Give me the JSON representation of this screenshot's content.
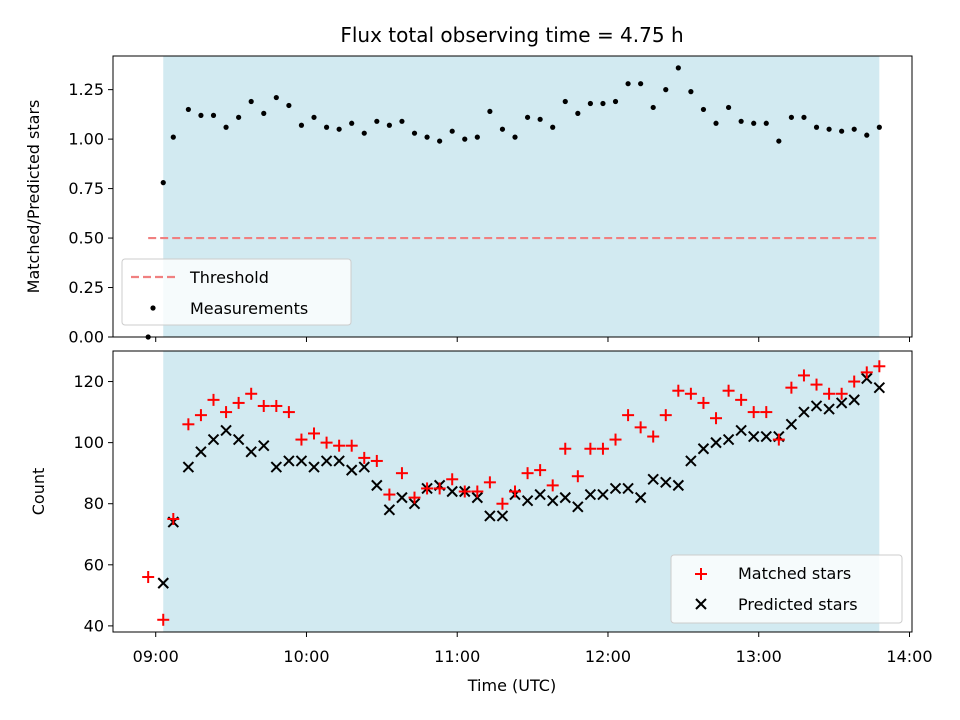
{
  "chart_data": [
    {
      "type": "scatter",
      "title": "Flux total observing time = 4.75 h",
      "ylabel": "Matched/Predicted stars",
      "ylim": [
        0.0,
        1.42
      ],
      "yticks": [
        0.0,
        0.25,
        0.5,
        0.75,
        1.0,
        1.25
      ],
      "ytick_labels": [
        "0.00",
        "0.25",
        "0.50",
        "0.75",
        "1.00",
        "1.25"
      ],
      "shaded_region": {
        "x": [
          "09:03",
          "13:48"
        ],
        "color": "#add8e6"
      },
      "threshold": {
        "name": "Threshold",
        "y": 0.5,
        "x": [
          "08:57",
          "13:48"
        ],
        "color": "#f08080",
        "style": "dashed"
      },
      "series": [
        {
          "name": "Measurements",
          "color": "#000000",
          "marker": "dot",
          "x": [
            "08:57",
            "09:03",
            "09:07",
            "09:13",
            "09:18",
            "09:23",
            "09:28",
            "09:33",
            "09:38",
            "09:43",
            "09:48",
            "09:53",
            "09:58",
            "10:03",
            "10:08",
            "10:13",
            "10:18",
            "10:23",
            "10:28",
            "10:33",
            "10:38",
            "10:43",
            "10:48",
            "10:53",
            "10:58",
            "11:03",
            "11:08",
            "11:13",
            "11:18",
            "11:23",
            "11:28",
            "11:33",
            "11:38",
            "11:43",
            "11:48",
            "11:53",
            "11:58",
            "12:03",
            "12:08",
            "12:13",
            "12:18",
            "12:23",
            "12:28",
            "12:33",
            "12:38",
            "12:43",
            "12:48",
            "12:53",
            "12:58",
            "13:03",
            "13:08",
            "13:13",
            "13:18",
            "13:23",
            "13:28",
            "13:33",
            "13:38",
            "13:43",
            "13:48"
          ],
          "y": [
            0.0,
            0.78,
            1.01,
            1.15,
            1.12,
            1.12,
            1.06,
            1.11,
            1.19,
            1.13,
            1.21,
            1.17,
            1.07,
            1.11,
            1.06,
            1.05,
            1.08,
            1.03,
            1.09,
            1.07,
            1.09,
            1.03,
            1.01,
            0.99,
            1.04,
            1.0,
            1.01,
            1.14,
            1.05,
            1.01,
            1.11,
            1.1,
            1.06,
            1.19,
            1.13,
            1.18,
            1.18,
            1.19,
            1.28,
            1.28,
            1.16,
            1.25,
            1.36,
            1.24,
            1.15,
            1.08,
            1.16,
            1.09,
            1.08,
            1.08,
            0.99,
            1.11,
            1.11,
            1.06,
            1.05,
            1.04,
            1.05,
            1.02,
            1.06
          ]
        }
      ],
      "legend": {
        "position": "lower-left",
        "entries": [
          "Threshold",
          "Measurements"
        ]
      }
    },
    {
      "type": "scatter",
      "xlabel": "Time (UTC)",
      "ylabel": "Count",
      "ylim": [
        38,
        130
      ],
      "yticks": [
        40,
        60,
        80,
        100,
        120
      ],
      "ytick_labels": [
        "40",
        "60",
        "80",
        "100",
        "120"
      ],
      "xlim": [
        "08:43",
        "14:01"
      ],
      "xticks": [
        "09:00",
        "10:00",
        "11:00",
        "12:00",
        "13:00",
        "14:00"
      ],
      "xtick_labels": [
        "09:00",
        "10:00",
        "11:00",
        "12:00",
        "13:00",
        "14:00"
      ],
      "shaded_region": {
        "x": [
          "09:03",
          "13:48"
        ],
        "color": "#add8e6"
      },
      "series": [
        {
          "name": "Matched stars",
          "color": "#ff0000",
          "marker": "plus",
          "x": [
            "08:57",
            "09:03",
            "09:07",
            "09:13",
            "09:18",
            "09:23",
            "09:28",
            "09:33",
            "09:38",
            "09:43",
            "09:48",
            "09:53",
            "09:58",
            "10:03",
            "10:08",
            "10:13",
            "10:18",
            "10:23",
            "10:28",
            "10:33",
            "10:38",
            "10:43",
            "10:48",
            "10:53",
            "10:58",
            "11:03",
            "11:08",
            "11:13",
            "11:18",
            "11:23",
            "11:28",
            "11:33",
            "11:38",
            "11:43",
            "11:48",
            "11:53",
            "11:58",
            "12:03",
            "12:08",
            "12:13",
            "12:18",
            "12:23",
            "12:28",
            "12:33",
            "12:38",
            "12:43",
            "12:48",
            "12:53",
            "12:58",
            "13:03",
            "13:08",
            "13:13",
            "13:18",
            "13:23",
            "13:28",
            "13:33",
            "13:38",
            "13:43",
            "13:48"
          ],
          "y": [
            56,
            42,
            75,
            106,
            109,
            114,
            110,
            113,
            116,
            112,
            112,
            110,
            101,
            103,
            100,
            99,
            99,
            95,
            94,
            83,
            90,
            82,
            85,
            85,
            88,
            84,
            84,
            87,
            80,
            84,
            90,
            91,
            86,
            98,
            89,
            98,
            98,
            101,
            109,
            105,
            102,
            109,
            117,
            116,
            113,
            108,
            117,
            114,
            110,
            110,
            101,
            118,
            122,
            119,
            116,
            116,
            120,
            123,
            125
          ]
        },
        {
          "name": "Predicted stars",
          "color": "#000000",
          "marker": "x",
          "x": [
            "09:03",
            "09:07",
            "09:13",
            "09:18",
            "09:23",
            "09:28",
            "09:33",
            "09:38",
            "09:43",
            "09:48",
            "09:53",
            "09:58",
            "10:03",
            "10:08",
            "10:13",
            "10:18",
            "10:23",
            "10:28",
            "10:33",
            "10:38",
            "10:43",
            "10:48",
            "10:53",
            "10:58",
            "11:03",
            "11:08",
            "11:13",
            "11:18",
            "11:23",
            "11:28",
            "11:33",
            "11:38",
            "11:43",
            "11:48",
            "11:53",
            "11:58",
            "12:03",
            "12:08",
            "12:13",
            "12:18",
            "12:23",
            "12:28",
            "12:33",
            "12:38",
            "12:43",
            "12:48",
            "12:53",
            "12:58",
            "13:03",
            "13:08",
            "13:13",
            "13:18",
            "13:23",
            "13:28",
            "13:33",
            "13:38",
            "13:43",
            "13:48"
          ],
          "y": [
            54,
            74,
            92,
            97,
            101,
            104,
            101,
            97,
            99,
            92,
            94,
            94,
            92,
            94,
            94,
            91,
            92,
            86,
            78,
            82,
            80,
            85,
            86,
            84,
            84,
            82,
            76,
            76,
            83,
            81,
            83,
            81,
            82,
            79,
            83,
            83,
            85,
            85,
            82,
            88,
            87,
            86,
            94,
            98,
            100,
            101,
            104,
            102,
            102,
            102,
            106,
            110,
            112,
            111,
            113,
            114,
            121,
            118
          ]
        }
      ],
      "legend": {
        "position": "lower-right",
        "entries": [
          "Matched stars",
          "Predicted stars"
        ]
      }
    }
  ]
}
